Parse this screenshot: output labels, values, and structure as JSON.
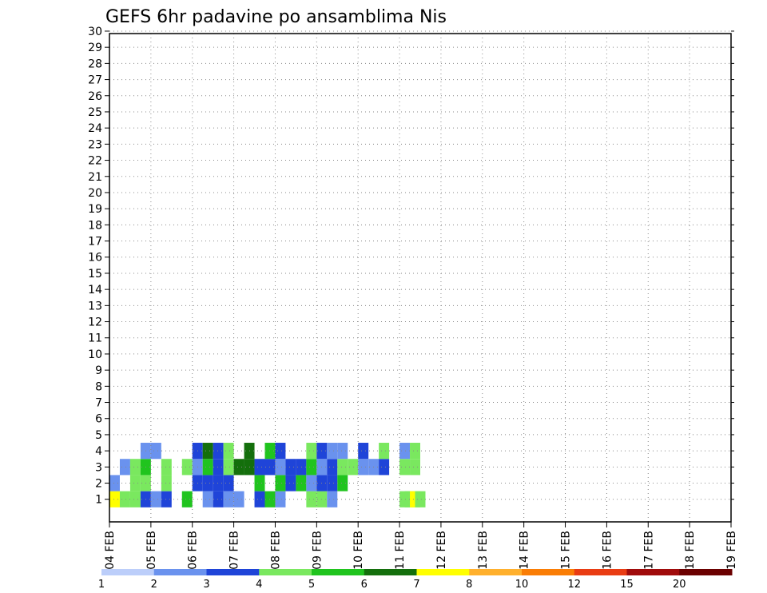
{
  "chart_data": {
    "type": "heatmap",
    "title": "GEFS 6hr padavine po ansamblima Nis",
    "xlabel": "",
    "ylabel": "",
    "x_ticks": [
      "04 FEB",
      "05 FEB",
      "06 FEB",
      "07 FEB",
      "08 FEB",
      "09 FEB",
      "10 FEB",
      "11 FEB",
      "12 FEB",
      "13 FEB",
      "14 FEB",
      "15 FEB",
      "16 FEB",
      "17 FEB",
      "18 FEB",
      "19 FEB"
    ],
    "x_range": [
      "04 FEB",
      "19 FEB"
    ],
    "y_ticks": [
      1,
      2,
      3,
      4,
      5,
      6,
      7,
      8,
      9,
      10,
      11,
      12,
      13,
      14,
      15,
      16,
      17,
      18,
      19,
      20,
      21,
      22,
      23,
      24,
      25,
      26,
      27,
      28,
      29,
      30
    ],
    "y_range": [
      0,
      30
    ],
    "time_step_hours": 6,
    "grid": true,
    "legend": {
      "placement": "bottom",
      "labels": [
        "1",
        "2",
        "3",
        "4",
        "5",
        "6",
        "7",
        "8",
        "10",
        "12",
        "15",
        "20"
      ],
      "colors": [
        "#bccefa",
        "#6a92ee",
        "#1f44d8",
        "#7ae85f",
        "#20c41e",
        "#146f0c",
        "#ffff00",
        "#ffb02d",
        "#fa7d05",
        "#e93c13",
        "#a00b0b",
        "#6b0000"
      ]
    },
    "cells": [
      [
        1,
        1,
        6
      ],
      [
        1,
        2,
        3
      ],
      [
        1,
        3,
        3
      ],
      [
        1,
        4,
        2
      ],
      [
        1,
        5,
        1
      ],
      [
        1,
        6,
        2
      ],
      [
        1,
        8,
        4
      ],
      [
        1,
        10,
        1
      ],
      [
        1,
        11,
        2
      ],
      [
        1,
        12,
        1
      ],
      [
        1,
        13,
        1
      ],
      [
        1,
        15,
        2
      ],
      [
        1,
        16,
        4
      ],
      [
        1,
        17,
        1
      ],
      [
        1,
        20,
        3
      ],
      [
        1,
        21,
        3
      ],
      [
        1,
        22,
        1
      ],
      [
        1,
        29,
        3
      ],
      [
        1,
        29.5,
        3
      ],
      [
        1,
        30,
        6
      ],
      [
        1,
        30.5,
        3
      ],
      [
        2,
        1,
        1
      ],
      [
        2,
        3,
        3
      ],
      [
        2,
        4,
        3
      ],
      [
        2,
        6,
        3
      ],
      [
        2,
        9,
        2
      ],
      [
        2,
        10,
        2
      ],
      [
        2,
        11,
        2
      ],
      [
        2,
        12,
        2
      ],
      [
        2,
        15,
        4
      ],
      [
        2,
        17,
        4
      ],
      [
        2,
        18,
        2
      ],
      [
        2,
        19,
        4
      ],
      [
        2,
        20,
        1
      ],
      [
        2,
        21,
        2
      ],
      [
        2,
        22,
        2
      ],
      [
        2,
        23,
        4
      ],
      [
        3,
        2,
        1
      ],
      [
        3,
        3,
        3
      ],
      [
        3,
        4,
        4
      ],
      [
        3,
        6,
        3
      ],
      [
        3,
        8,
        3
      ],
      [
        3,
        9,
        1
      ],
      [
        3,
        10,
        4
      ],
      [
        3,
        11,
        2
      ],
      [
        3,
        12,
        3
      ],
      [
        3,
        13,
        5
      ],
      [
        3,
        14,
        5
      ],
      [
        3,
        15,
        2
      ],
      [
        3,
        16,
        2
      ],
      [
        3,
        17,
        1
      ],
      [
        3,
        18,
        2
      ],
      [
        3,
        19,
        2
      ],
      [
        3,
        20,
        4
      ],
      [
        3,
        21,
        1
      ],
      [
        3,
        22,
        2
      ],
      [
        3,
        23,
        3
      ],
      [
        3,
        24,
        3
      ],
      [
        3,
        25,
        1
      ],
      [
        3,
        26,
        1
      ],
      [
        3,
        27,
        2
      ],
      [
        3,
        29,
        3
      ],
      [
        3,
        30,
        3
      ],
      [
        4,
        4,
        1
      ],
      [
        4,
        5,
        1
      ],
      [
        4,
        9,
        2
      ],
      [
        4,
        10,
        5
      ],
      [
        4,
        11,
        2
      ],
      [
        4,
        12,
        3
      ],
      [
        4,
        14,
        5
      ],
      [
        4,
        16,
        4
      ],
      [
        4,
        17,
        2
      ],
      [
        4,
        20,
        3
      ],
      [
        4,
        21,
        2
      ],
      [
        4,
        22,
        1
      ],
      [
        4,
        23,
        1
      ],
      [
        4,
        25,
        2
      ],
      [
        4,
        27,
        3
      ],
      [
        4,
        29,
        1
      ],
      [
        4,
        30,
        3
      ]
    ]
  }
}
